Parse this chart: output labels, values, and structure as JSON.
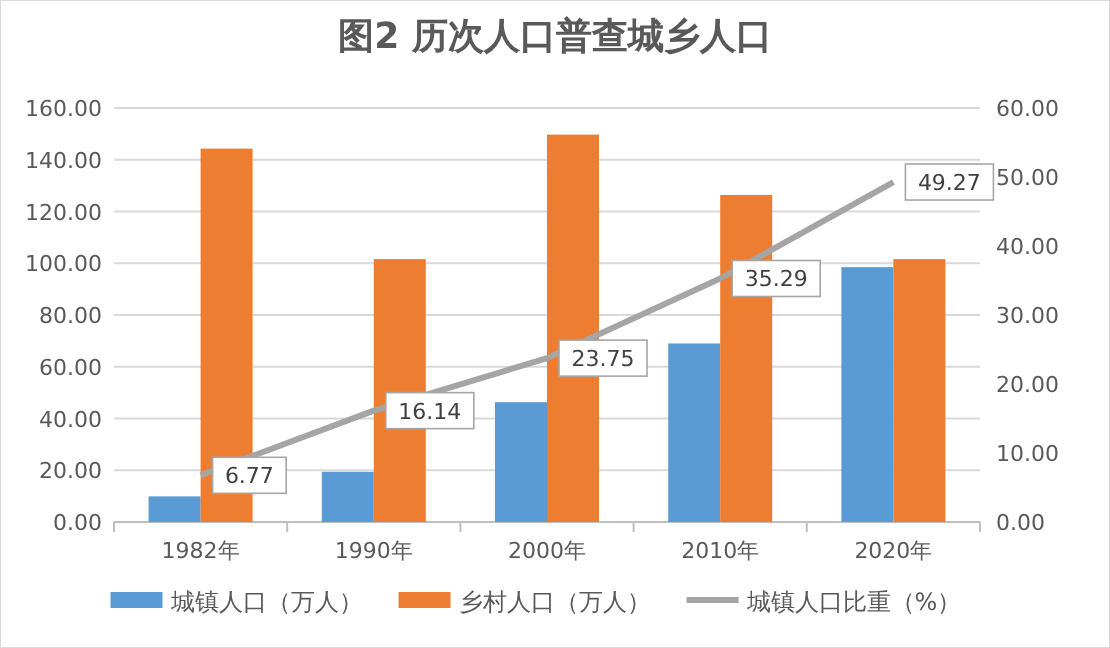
{
  "chart_data": {
    "type": "bar",
    "title": "图2  历次人口普查城乡人口",
    "categories": [
      "1982年",
      "1990年",
      "2000年",
      "2010年",
      "2020年"
    ],
    "series": [
      {
        "name": "城镇人口（万人）",
        "color": "#5b9bd5",
        "values": [
          9.9,
          19.4,
          46.3,
          69.0,
          98.5
        ]
      },
      {
        "name": "乡村人口（万人）",
        "color": "#ed7d31",
        "values": [
          144.3,
          101.6,
          149.7,
          126.4,
          101.6
        ]
      },
      {
        "name": "城镇人口比重（%）",
        "type": "line",
        "axis": "y2",
        "color": "#a5a5a5",
        "values": [
          6.77,
          16.14,
          23.75,
          35.29,
          49.27
        ],
        "value_labels": [
          "6.77",
          "16.14",
          "23.75",
          "35.29",
          "49.27"
        ]
      }
    ],
    "ylim": [
      0,
      160
    ],
    "yticks": [
      {
        "value": 0,
        "label": "0.00"
      },
      {
        "value": 20,
        "label": "20.00"
      },
      {
        "value": 40,
        "label": "40.00"
      },
      {
        "value": 60,
        "label": "60.00"
      },
      {
        "value": 80,
        "label": "80.00"
      },
      {
        "value": 100,
        "label": "100.00"
      },
      {
        "value": 120,
        "label": "120.00"
      },
      {
        "value": 140,
        "label": "140.00"
      },
      {
        "value": 160,
        "label": "160.00"
      }
    ],
    "y2lim": [
      0,
      60
    ],
    "y2ticks": [
      {
        "value": 0,
        "label": "0.00"
      },
      {
        "value": 10,
        "label": "10.00"
      },
      {
        "value": 20,
        "label": "20.00"
      },
      {
        "value": 30,
        "label": "30.00"
      },
      {
        "value": 40,
        "label": "40.00"
      },
      {
        "value": 50,
        "label": "50.00"
      },
      {
        "value": 60,
        "label": "60.00"
      }
    ],
    "grid": "y",
    "legend": "bottom"
  }
}
